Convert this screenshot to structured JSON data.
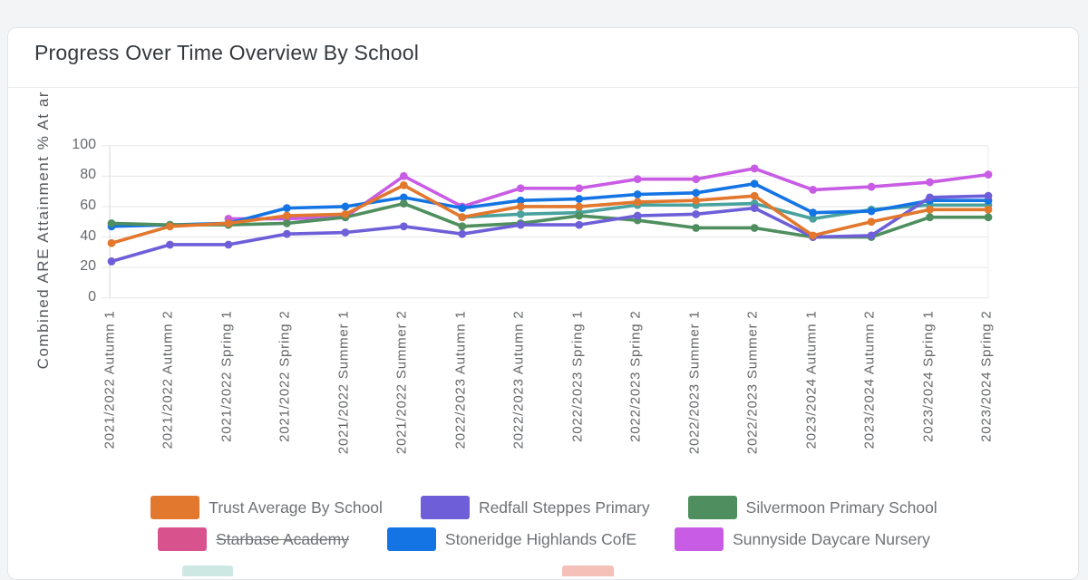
{
  "page": {
    "title": "Progress Over Time Overview By School"
  },
  "chart_data": {
    "type": "line",
    "title": "Progress Over Time Overview By School",
    "y_axis_label": "Combined ARE Attainment % At ar",
    "ylabel": "Combined ARE Attainment % At ar",
    "xlabel": "",
    "ylim": [
      0,
      100
    ],
    "y_ticks": [
      100,
      80,
      60,
      40,
      20,
      0
    ],
    "grid": "horizontal",
    "legend_position": "bottom",
    "categories": [
      "2021/2022 Autumn 1",
      "2021/2022 Autumn 2",
      "2021/2022 Spring 1",
      "2021/2022 Spring 2",
      "2021/2022 Summer 1",
      "2021/2022 Summer 2",
      "2022/2023 Autumn 1",
      "2022/2023 Autumn 2",
      "2022/2023 Spring 1",
      "2022/2023 Spring 2",
      "2022/2023 Summer 1",
      "2022/2023 Summer 2",
      "2023/2024 Autumn 1",
      "2023/2024 Autumn 2",
      "2023/2024 Spring 1",
      "2023/2024 Spring 2"
    ],
    "series": [
      {
        "name": "Trust Average By School",
        "color": "#e2772e",
        "hidden": false,
        "values": [
          36,
          47,
          49,
          54,
          55,
          74,
          53,
          60,
          60,
          63,
          64,
          67,
          41,
          50,
          58,
          58
        ]
      },
      {
        "name": "Redfall Steppes Primary",
        "color": "#6e5fd9",
        "hidden": false,
        "values": [
          24,
          35,
          35,
          42,
          43,
          47,
          42,
          48,
          48,
          54,
          55,
          59,
          40,
          41,
          66,
          67
        ]
      },
      {
        "name": "Silvermoon Primary School",
        "color": "#4f8f5f",
        "hidden": false,
        "values": [
          49,
          48,
          48,
          49,
          53,
          62,
          47,
          49,
          54,
          51,
          46,
          46,
          40,
          40,
          53,
          53
        ]
      },
      {
        "name": "Starbase Academy",
        "color": "#d8538e",
        "hidden": true,
        "values": []
      },
      {
        "name": "Stoneridge Highlands CofE",
        "color": "#1474e4",
        "hidden": false,
        "values": [
          47,
          48,
          49,
          59,
          60,
          66,
          59,
          64,
          65,
          68,
          69,
          75,
          56,
          57,
          64,
          64
        ]
      },
      {
        "name": "Sunnyside Daycare Nursery",
        "color": "#c85ce4",
        "hidden": false,
        "values": [
          null,
          null,
          52,
          52,
          53,
          80,
          60,
          72,
          72,
          78,
          78,
          85,
          71,
          73,
          76,
          81
        ]
      },
      {
        "name": "",
        "color": "#49a29d",
        "hidden": false,
        "values": [
          null,
          null,
          null,
          null,
          null,
          null,
          53,
          55,
          56,
          61,
          61,
          62,
          52,
          58,
          61,
          61
        ]
      }
    ],
    "legend_partial_swatches": [
      {
        "color": "#cde8e2"
      },
      {
        "color": "#f4c0b8"
      }
    ]
  }
}
